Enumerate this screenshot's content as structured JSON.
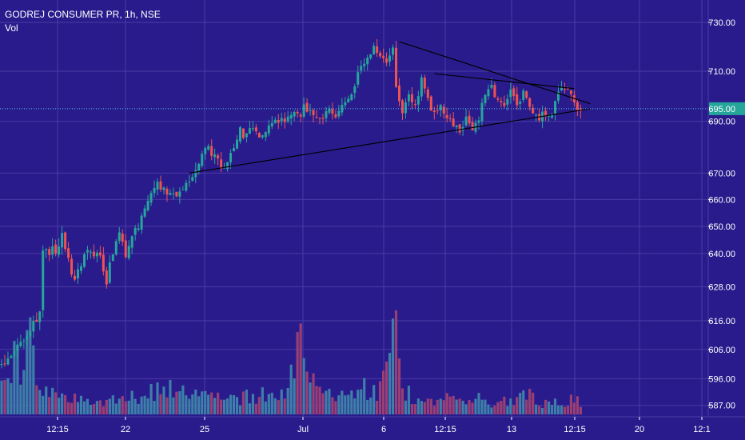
{
  "header": {
    "symbol": "GODREJ CONSUMER PR",
    "interval": "1h",
    "exchange": "NSE",
    "sep": ", ",
    "volume_label": "Vol"
  },
  "colors": {
    "background": "#2a1b8c",
    "grid": "#4a3ba6",
    "up": "#26a69a",
    "down": "#ef5350",
    "up_volume": "#3d7fa8",
    "down_volume": "#9a3f74",
    "price_line": "#4fc3f7",
    "trendline": "#000000",
    "axis_text": "#ffffff",
    "price_badge": "#26a69a"
  },
  "chart_data": {
    "type": "candlestick",
    "y_axis": {
      "ticks": [
        "730.00",
        "710.00",
        "690.00",
        "670.00",
        "660.00",
        "650.00",
        "640.00",
        "628.00",
        "616.00",
        "606.00",
        "596.00",
        "587.00"
      ],
      "scale": "log",
      "range": [
        584,
        736
      ]
    },
    "x_axis": {
      "ticks": [
        "12:15",
        "22",
        "25",
        "Jul",
        "6",
        "12:15",
        "13",
        "12:15",
        "20",
        "12:1"
      ]
    },
    "last_price": "695.00",
    "last_price_value": 695,
    "grid": true,
    "ohlc_anchors": [
      [
        0,
        600
      ],
      [
        6,
        606
      ],
      [
        9,
        611
      ],
      [
        13,
        618
      ],
      [
        14,
        640
      ],
      [
        16,
        641
      ],
      [
        19,
        641
      ],
      [
        20,
        648
      ],
      [
        22,
        637
      ],
      [
        24,
        630
      ],
      [
        26,
        636
      ],
      [
        28,
        640
      ],
      [
        30,
        640
      ],
      [
        32,
        638
      ],
      [
        34,
        630
      ],
      [
        36,
        641
      ],
      [
        38,
        646
      ],
      [
        40,
        640
      ],
      [
        42,
        648
      ],
      [
        44,
        650
      ],
      [
        46,
        656
      ],
      [
        48,
        662
      ],
      [
        50,
        666
      ],
      [
        52,
        663
      ],
      [
        54,
        661
      ],
      [
        56,
        662
      ],
      [
        58,
        665
      ],
      [
        60,
        668
      ],
      [
        62,
        670
      ],
      [
        64,
        676
      ],
      [
        66,
        680
      ],
      [
        68,
        676
      ],
      [
        70,
        673
      ],
      [
        72,
        674
      ],
      [
        74,
        681
      ],
      [
        76,
        686
      ],
      [
        78,
        684
      ],
      [
        80,
        688
      ],
      [
        82,
        685
      ],
      [
        84,
        687
      ],
      [
        86,
        688
      ],
      [
        88,
        691
      ],
      [
        90,
        690
      ],
      [
        92,
        693
      ],
      [
        94,
        692
      ],
      [
        96,
        695
      ],
      [
        98,
        693
      ],
      [
        100,
        690
      ],
      [
        102,
        692
      ],
      [
        104,
        695
      ],
      [
        106,
        693
      ],
      [
        108,
        697
      ],
      [
        110,
        698
      ],
      [
        112,
        705
      ],
      [
        114,
        711
      ],
      [
        116,
        715
      ],
      [
        118,
        719
      ],
      [
        120,
        716
      ],
      [
        122,
        713
      ],
      [
        124,
        718
      ],
      [
        125,
        705
      ],
      [
        127,
        693
      ],
      [
        129,
        700
      ],
      [
        131,
        696
      ],
      [
        133,
        706
      ],
      [
        135,
        698
      ],
      [
        137,
        694
      ],
      [
        139,
        697
      ],
      [
        141,
        692
      ],
      [
        143,
        688
      ],
      [
        145,
        686
      ],
      [
        147,
        691
      ],
      [
        149,
        688
      ],
      [
        151,
        692
      ],
      [
        153,
        700
      ],
      [
        155,
        703
      ],
      [
        157,
        699
      ],
      [
        159,
        697
      ],
      [
        161,
        702
      ],
      [
        163,
        696
      ],
      [
        165,
        701
      ],
      [
        167,
        695
      ],
      [
        169,
        691
      ],
      [
        171,
        693
      ],
      [
        173,
        692
      ],
      [
        175,
        697
      ],
      [
        177,
        703
      ],
      [
        179,
        701
      ],
      [
        181,
        699
      ],
      [
        182,
        695
      ]
    ],
    "volume_anchors": [
      [
        0,
        0.3
      ],
      [
        4,
        0.5
      ],
      [
        6,
        0.45
      ],
      [
        8,
        0.9
      ],
      [
        10,
        0.6
      ],
      [
        12,
        0.3
      ],
      [
        16,
        0.2
      ],
      [
        22,
        0.15
      ],
      [
        30,
        0.12
      ],
      [
        40,
        0.15
      ],
      [
        50,
        0.25
      ],
      [
        58,
        0.2
      ],
      [
        64,
        0.18
      ],
      [
        70,
        0.2
      ],
      [
        74,
        0.15
      ],
      [
        80,
        0.18
      ],
      [
        88,
        0.2
      ],
      [
        92,
        0.5
      ],
      [
        94,
        1.0
      ],
      [
        96,
        0.4
      ],
      [
        100,
        0.2
      ],
      [
        106,
        0.15
      ],
      [
        110,
        0.2
      ],
      [
        114,
        0.25
      ],
      [
        118,
        0.2
      ],
      [
        120,
        0.3
      ],
      [
        124,
        0.75
      ],
      [
        126,
        0.25
      ],
      [
        130,
        0.15
      ],
      [
        136,
        0.1
      ],
      [
        140,
        0.15
      ],
      [
        146,
        0.12
      ],
      [
        150,
        0.15
      ],
      [
        154,
        0.1
      ],
      [
        158,
        0.12
      ],
      [
        162,
        0.15
      ],
      [
        164,
        0.3
      ],
      [
        168,
        0.12
      ],
      [
        172,
        0.1
      ],
      [
        176,
        0.12
      ],
      [
        180,
        0.15
      ],
      [
        182,
        0.1
      ]
    ],
    "annotations": [
      {
        "type": "trendline",
        "from": {
          "bar": 59,
          "price": 670
        },
        "to": {
          "bar": 185,
          "price": 695
        }
      },
      {
        "type": "trendline",
        "from": {
          "bar": 125,
          "price": 722
        },
        "to": {
          "bar": 185,
          "price": 697
        }
      },
      {
        "type": "trendline",
        "from": {
          "bar": 136,
          "price": 709
        },
        "to": {
          "bar": 180,
          "price": 703
        }
      }
    ]
  }
}
